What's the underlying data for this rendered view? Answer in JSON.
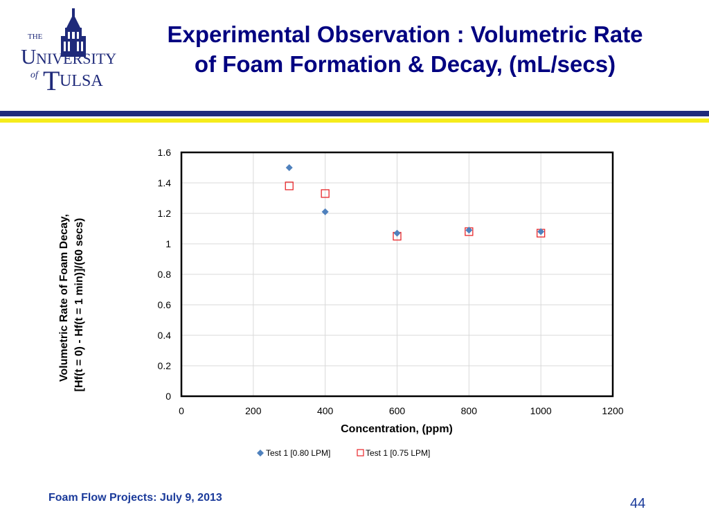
{
  "header": {
    "logo_text": [
      "THE",
      "UNIVERSITY",
      "of",
      "TULSA"
    ],
    "title_line1": "Experimental Observation : Volumetric Rate",
    "title_line2": "of Foam Formation & Decay, (mL/secs)"
  },
  "colors": {
    "title": "#000080",
    "rule_navy": "#1f2a7a",
    "rule_yellow": "#f5ec1c",
    "series1": "#4f81bd",
    "series2": "#e8262a",
    "footer": "#1a3a9a"
  },
  "chart_data": {
    "type": "scatter",
    "xlabel": "Concentration, (ppm)",
    "ylabel_line1": "Volumetric Rate of Foam Decay,",
    "ylabel_line2": "[Hf(t = 0) - Hf(t = 1 min)]/(60 secs)",
    "xlim": [
      0,
      1200
    ],
    "ylim": [
      0,
      1.6
    ],
    "x_ticks": [
      "0",
      "200",
      "400",
      "600",
      "800",
      "1000",
      "1200"
    ],
    "y_ticks": [
      "0",
      "0.2",
      "0.4",
      "0.6",
      "0.8",
      "1",
      "1.2",
      "1.4",
      "1.6"
    ],
    "grid": true,
    "legend_position": "bottom",
    "series": [
      {
        "name": "Test 1 [0.80 LPM]",
        "marker": "filled-diamond",
        "points": [
          [
            300,
            1.5
          ],
          [
            400,
            1.21
          ],
          [
            600,
            1.07
          ],
          [
            800,
            1.09
          ],
          [
            1000,
            1.08
          ]
        ]
      },
      {
        "name": "Test 1 [0.75 LPM]",
        "marker": "open-square",
        "points": [
          [
            300,
            1.38
          ],
          [
            400,
            1.33
          ],
          [
            600,
            1.05
          ],
          [
            800,
            1.08
          ],
          [
            1000,
            1.07
          ]
        ]
      }
    ]
  },
  "footer": {
    "project": "Foam Flow Projects: July 9, 2013",
    "page_number": "44"
  }
}
